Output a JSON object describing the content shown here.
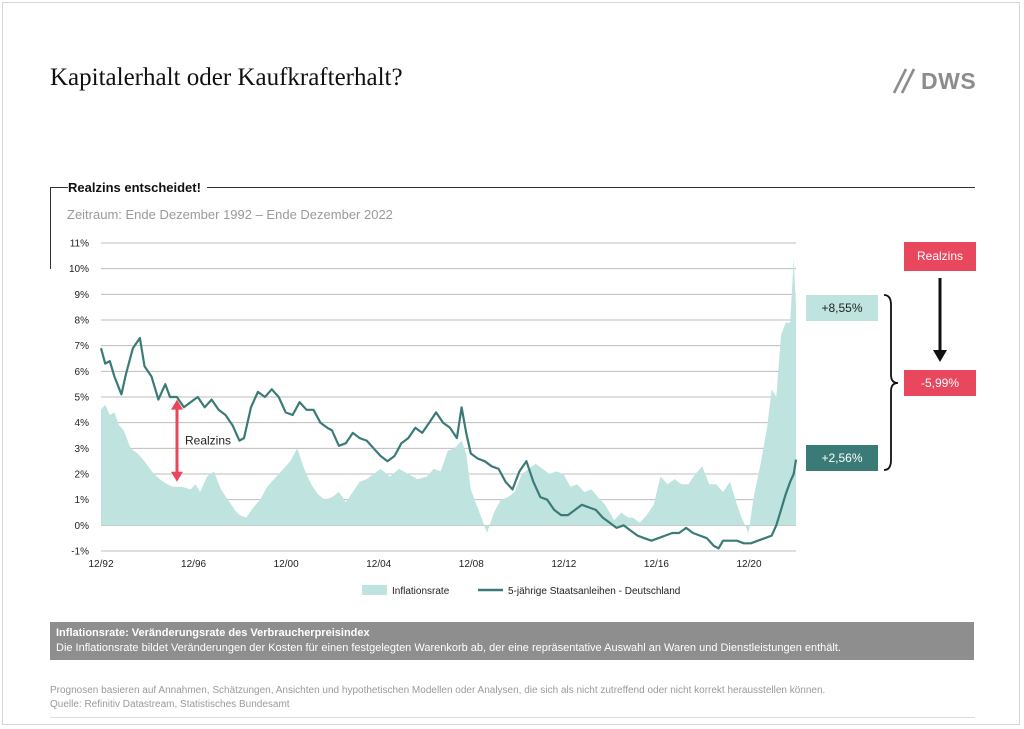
{
  "page": {
    "title": "Kapitalerhalt oder Kaufkrafterhalt?",
    "logo_text": "DWS"
  },
  "section": {
    "title": "Realzins entscheidet!",
    "subtitle": "Zeitraum: Ende Dezember 1992 – Ende Dezember 2022"
  },
  "colors": {
    "inflation": "#bfe3df",
    "bond": "#3b7b77",
    "realzins": "#e8475d",
    "grid": "#bdbdbd"
  },
  "chart_data": {
    "type": "area",
    "x_unit": "year",
    "xlim": [
      1992.92,
      2022.95
    ],
    "ylim": [
      -1,
      11
    ],
    "y_ticks": [
      -1,
      0,
      1,
      2,
      3,
      4,
      5,
      6,
      7,
      8,
      9,
      10,
      11
    ],
    "y_tick_labels": [
      "-1%",
      "0%",
      "1%",
      "2%",
      "3%",
      "4%",
      "5%",
      "6%",
      "7%",
      "8%",
      "9%",
      "10%",
      "11%"
    ],
    "x_ticks": [
      1992.92,
      1996.92,
      2000.92,
      2004.92,
      2008.92,
      2012.92,
      2016.92,
      2020.92
    ],
    "x_tick_labels": [
      "12/92",
      "12/96",
      "12/00",
      "12/04",
      "12/08",
      "12/12",
      "12/16",
      "12/20"
    ],
    "grid": true,
    "legend_position": "bottom",
    "series": [
      {
        "name": "Inflationsrate",
        "kind": "area",
        "x": [
          1992.92,
          1993.1,
          1993.3,
          1993.5,
          1993.7,
          1993.9,
          1994.2,
          1994.5,
          1994.8,
          1995.2,
          1995.6,
          1996.0,
          1996.4,
          1996.8,
          1997.0,
          1997.2,
          1997.5,
          1997.8,
          1998.1,
          1998.4,
          1998.7,
          1998.9,
          1999.2,
          1999.5,
          1999.8,
          2000.1,
          2000.5,
          2000.8,
          2001.1,
          2001.4,
          2001.7,
          2002.0,
          2002.3,
          2002.6,
          2002.9,
          2003.2,
          2003.5,
          2003.8,
          2004.1,
          2004.4,
          2004.7,
          2005.0,
          2005.4,
          2005.8,
          2006.2,
          2006.6,
          2007.0,
          2007.3,
          2007.6,
          2007.9,
          2008.2,
          2008.5,
          2008.7,
          2008.9,
          2009.1,
          2009.4,
          2009.6,
          2009.9,
          2010.2,
          2010.5,
          2010.8,
          2011.1,
          2011.4,
          2011.7,
          2012.0,
          2012.3,
          2012.6,
          2012.9,
          2013.2,
          2013.5,
          2013.8,
          2014.1,
          2014.4,
          2014.7,
          2014.9,
          2015.1,
          2015.4,
          2015.7,
          2015.9,
          2016.2,
          2016.5,
          2016.8,
          2017.1,
          2017.4,
          2017.7,
          2018.0,
          2018.3,
          2018.6,
          2018.9,
          2019.2,
          2019.5,
          2019.8,
          2020.1,
          2020.4,
          2020.6,
          2020.9,
          2021.1,
          2021.4,
          2021.7,
          2021.9,
          2022.1,
          2022.3,
          2022.5,
          2022.7,
          2022.85,
          2022.95
        ],
        "values": [
          4.5,
          4.7,
          4.3,
          4.4,
          3.9,
          3.7,
          3.0,
          2.8,
          2.5,
          2.0,
          1.7,
          1.5,
          1.5,
          1.4,
          1.6,
          1.3,
          1.9,
          2.1,
          1.4,
          1.0,
          0.6,
          0.4,
          0.3,
          0.7,
          1.0,
          1.5,
          1.9,
          2.2,
          2.5,
          3.0,
          2.2,
          1.6,
          1.2,
          1.0,
          1.1,
          1.3,
          0.9,
          1.3,
          1.7,
          1.8,
          2.0,
          2.2,
          1.9,
          2.2,
          2.0,
          1.8,
          1.9,
          2.2,
          2.1,
          2.9,
          3.0,
          3.3,
          2.8,
          1.4,
          0.9,
          0.2,
          -0.3,
          0.5,
          1.0,
          1.1,
          1.3,
          2.0,
          2.2,
          2.4,
          2.2,
          2.0,
          2.1,
          2.0,
          1.5,
          1.6,
          1.3,
          1.4,
          1.1,
          0.8,
          0.5,
          0.2,
          0.5,
          0.3,
          0.3,
          0.1,
          0.4,
          0.8,
          1.9,
          1.6,
          1.8,
          1.6,
          1.6,
          2.0,
          2.3,
          1.6,
          1.6,
          1.3,
          1.7,
          0.8,
          0.3,
          -0.3,
          1.0,
          2.3,
          3.8,
          5.3,
          5.0,
          7.4,
          7.9,
          7.9,
          10.4,
          8.55
        ]
      },
      {
        "name": "5-jährige Staatsanleihen - Deutschland",
        "kind": "line",
        "x": [
          1992.92,
          1993.1,
          1993.3,
          1993.5,
          1993.8,
          1994.0,
          1994.3,
          1994.6,
          1994.8,
          1995.1,
          1995.4,
          1995.7,
          1995.9,
          1996.2,
          1996.5,
          1996.8,
          1997.1,
          1997.4,
          1997.7,
          1998.0,
          1998.3,
          1998.6,
          1998.9,
          1999.1,
          1999.4,
          1999.7,
          2000.0,
          2000.3,
          2000.6,
          2000.9,
          2001.2,
          2001.5,
          2001.8,
          2002.1,
          2002.4,
          2002.7,
          2002.9,
          2003.2,
          2003.5,
          2003.8,
          2004.1,
          2004.4,
          2004.7,
          2005.0,
          2005.3,
          2005.6,
          2005.9,
          2006.2,
          2006.5,
          2006.8,
          2007.1,
          2007.4,
          2007.7,
          2008.0,
          2008.3,
          2008.5,
          2008.7,
          2008.9,
          2009.2,
          2009.5,
          2009.8,
          2010.1,
          2010.4,
          2010.7,
          2011.0,
          2011.3,
          2011.6,
          2011.9,
          2012.2,
          2012.5,
          2012.8,
          2013.1,
          2013.4,
          2013.7,
          2014.0,
          2014.3,
          2014.6,
          2014.9,
          2015.2,
          2015.5,
          2015.8,
          2016.1,
          2016.4,
          2016.7,
          2017.0,
          2017.3,
          2017.6,
          2017.9,
          2018.2,
          2018.5,
          2018.8,
          2019.1,
          2019.4,
          2019.6,
          2019.8,
          2020.1,
          2020.4,
          2020.7,
          2021.0,
          2021.3,
          2021.6,
          2021.9,
          2022.1,
          2022.3,
          2022.5,
          2022.7,
          2022.85,
          2022.95
        ],
        "values": [
          6.9,
          6.3,
          6.4,
          5.8,
          5.1,
          5.9,
          6.9,
          7.3,
          6.2,
          5.8,
          4.9,
          5.5,
          5.0,
          5.0,
          4.6,
          4.8,
          5.0,
          4.6,
          4.9,
          4.5,
          4.3,
          3.9,
          3.3,
          3.4,
          4.6,
          5.2,
          5.0,
          5.3,
          5.0,
          4.4,
          4.3,
          4.8,
          4.5,
          4.5,
          4.0,
          3.8,
          3.7,
          3.1,
          3.2,
          3.6,
          3.4,
          3.3,
          3.0,
          2.7,
          2.5,
          2.7,
          3.2,
          3.4,
          3.8,
          3.6,
          4.0,
          4.4,
          4.0,
          3.8,
          3.4,
          4.6,
          3.6,
          2.8,
          2.6,
          2.5,
          2.3,
          2.2,
          1.7,
          1.4,
          2.1,
          2.5,
          1.7,
          1.1,
          1.0,
          0.6,
          0.4,
          0.4,
          0.6,
          0.8,
          0.7,
          0.6,
          0.3,
          0.1,
          -0.1,
          0.0,
          -0.2,
          -0.4,
          -0.5,
          -0.6,
          -0.5,
          -0.4,
          -0.3,
          -0.3,
          -0.1,
          -0.3,
          -0.4,
          -0.5,
          -0.8,
          -0.9,
          -0.6,
          -0.6,
          -0.6,
          -0.7,
          -0.7,
          -0.6,
          -0.5,
          -0.4,
          0.0,
          0.6,
          1.2,
          1.7,
          2.0,
          2.56
        ]
      }
    ],
    "annotations": {
      "realzins_arrow_label": "Realzins",
      "inflation_end_label": "+8,55%",
      "bond_end_label": "+2,56%",
      "realzins_header": "Realzins",
      "realzins_value_label": "-5,99%"
    }
  },
  "definition": {
    "title": "Inflationsrate: Veränderungsrate des Verbraucherpreisindex",
    "text": "Die Inflationsrate bildet Veränderungen der Kosten für einen festgelegten Warenkorb ab, der eine repräsentative Auswahl an Waren und Dienstleistungen enthält."
  },
  "footnotes": {
    "line1": "Prognosen basieren auf Annahmen, Schätzungen, Ansichten und hypothetischen Modellen oder Analysen, die sich als nicht zutreffend oder nicht korrekt herausstellen können.",
    "line2": "Quelle: Refinitiv Datastream, Statistisches Bundesamt"
  }
}
